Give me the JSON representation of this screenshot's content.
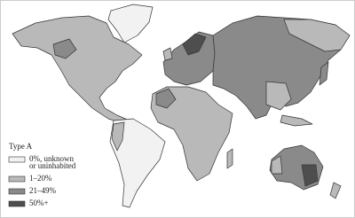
{
  "legend": {
    "title": "Type A",
    "items": [
      {
        "lines": [
          "0%, unknown",
          "or uninhabited"
        ],
        "color": "#f2f2f2"
      },
      {
        "lines": [
          "1–20%"
        ],
        "color": "#b9b9b9"
      },
      {
        "lines": [
          "21–49%"
        ],
        "color": "#8a8a8a"
      },
      {
        "lines": [
          "50%+"
        ],
        "color": "#4e4e4e"
      }
    ]
  }
}
